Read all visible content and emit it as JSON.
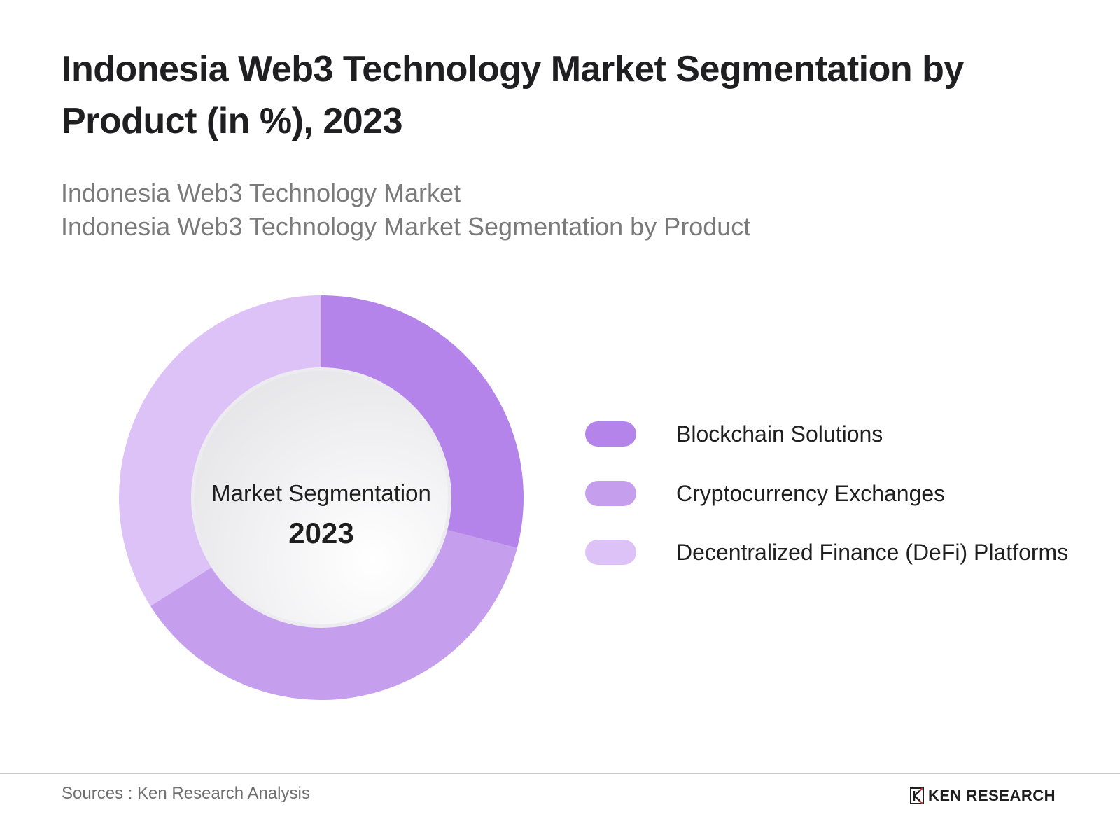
{
  "header": {
    "title": "Indonesia Web3 Technology Market Segmentation by Product (in %), 2023",
    "subtitle_line1": "Indonesia Web3 Technology Market",
    "subtitle_line2": "Indonesia Web3 Technology Market Segmentation by Product"
  },
  "center_label": {
    "line1": "Market Segmentation",
    "line2": "2023"
  },
  "legend": [
    {
      "label": "Blockchain Solutions",
      "color": "#b484ea"
    },
    {
      "label": "Cryptocurrency Exchanges",
      "color": "#c69eee"
    },
    {
      "label": "Decentralized Finance (DeFi) Platforms",
      "color": "#dcc2f6"
    }
  ],
  "footer": {
    "source": "Sources : Ken Research Analysis",
    "brand": "KEN RESEARCH",
    "brand_icon": "ken-research-logo-icon"
  },
  "chart_data": {
    "type": "pie",
    "subtype": "donut",
    "title": "Indonesia Web3 Technology Market Segmentation by Product (in %), 2023",
    "subtitle": [
      "Indonesia Web3 Technology Market",
      "Indonesia Web3 Technology Market Segmentation by Product"
    ],
    "center_text": [
      "Market Segmentation",
      "2023"
    ],
    "categories": [
      "Blockchain Solutions",
      "Cryptocurrency Exchanges",
      "Decentralized Finance (DeFi) Platforms"
    ],
    "values": [
      29,
      37,
      34
    ],
    "unit": "%",
    "colors": [
      "#b484ea",
      "#c69eee",
      "#dcc2f6"
    ],
    "start_angle": "top (12 o'clock), clockwise",
    "legend_position": "right",
    "data_labels": false
  }
}
